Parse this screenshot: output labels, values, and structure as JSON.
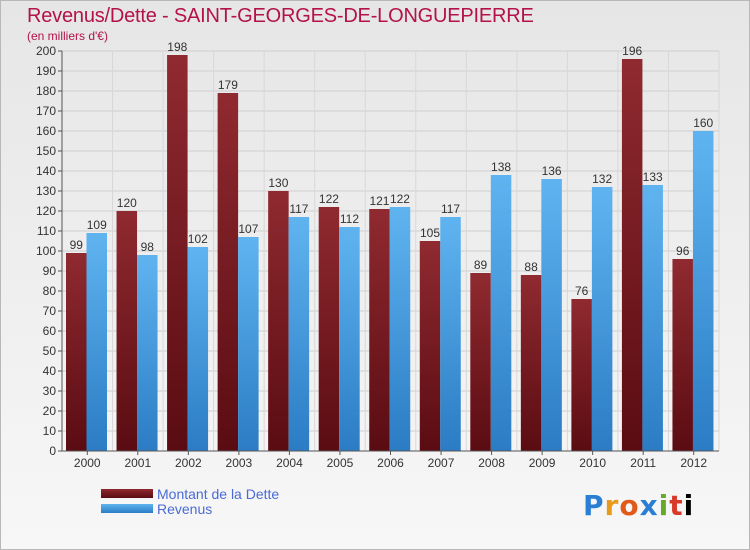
{
  "title": "Revenus/Dette - SAINT-GEORGES-DE-LONGUEPIERRE",
  "subtitle": "(en milliers d'€)",
  "logo": [
    "P",
    "r",
    "o",
    "x",
    "i",
    "t",
    "i"
  ],
  "logo_alt": "Proxiti",
  "colors": {
    "dette": "#7a1c22",
    "revenus": "#3a8fd8",
    "title": "#b3124a",
    "legend_text": "#4a6bd6"
  },
  "chart_data": {
    "type": "bar",
    "categories": [
      "2000",
      "2001",
      "2002",
      "2003",
      "2004",
      "2005",
      "2006",
      "2007",
      "2008",
      "2009",
      "2010",
      "2011",
      "2012"
    ],
    "series": [
      {
        "name": "Montant de la Dette",
        "values": [
          99,
          120,
          198,
          179,
          130,
          122,
          121,
          105,
          89,
          88,
          76,
          196,
          96
        ]
      },
      {
        "name": "Revenus",
        "values": [
          109,
          98,
          102,
          107,
          117,
          112,
          122,
          117,
          138,
          136,
          132,
          133,
          160
        ]
      }
    ],
    "ylim": [
      0,
      200
    ],
    "yticks": [
      0,
      10,
      20,
      30,
      40,
      50,
      60,
      70,
      80,
      90,
      100,
      110,
      120,
      130,
      140,
      150,
      160,
      170,
      180,
      190,
      200
    ],
    "grid": true,
    "legend_position": "bottom-left"
  }
}
